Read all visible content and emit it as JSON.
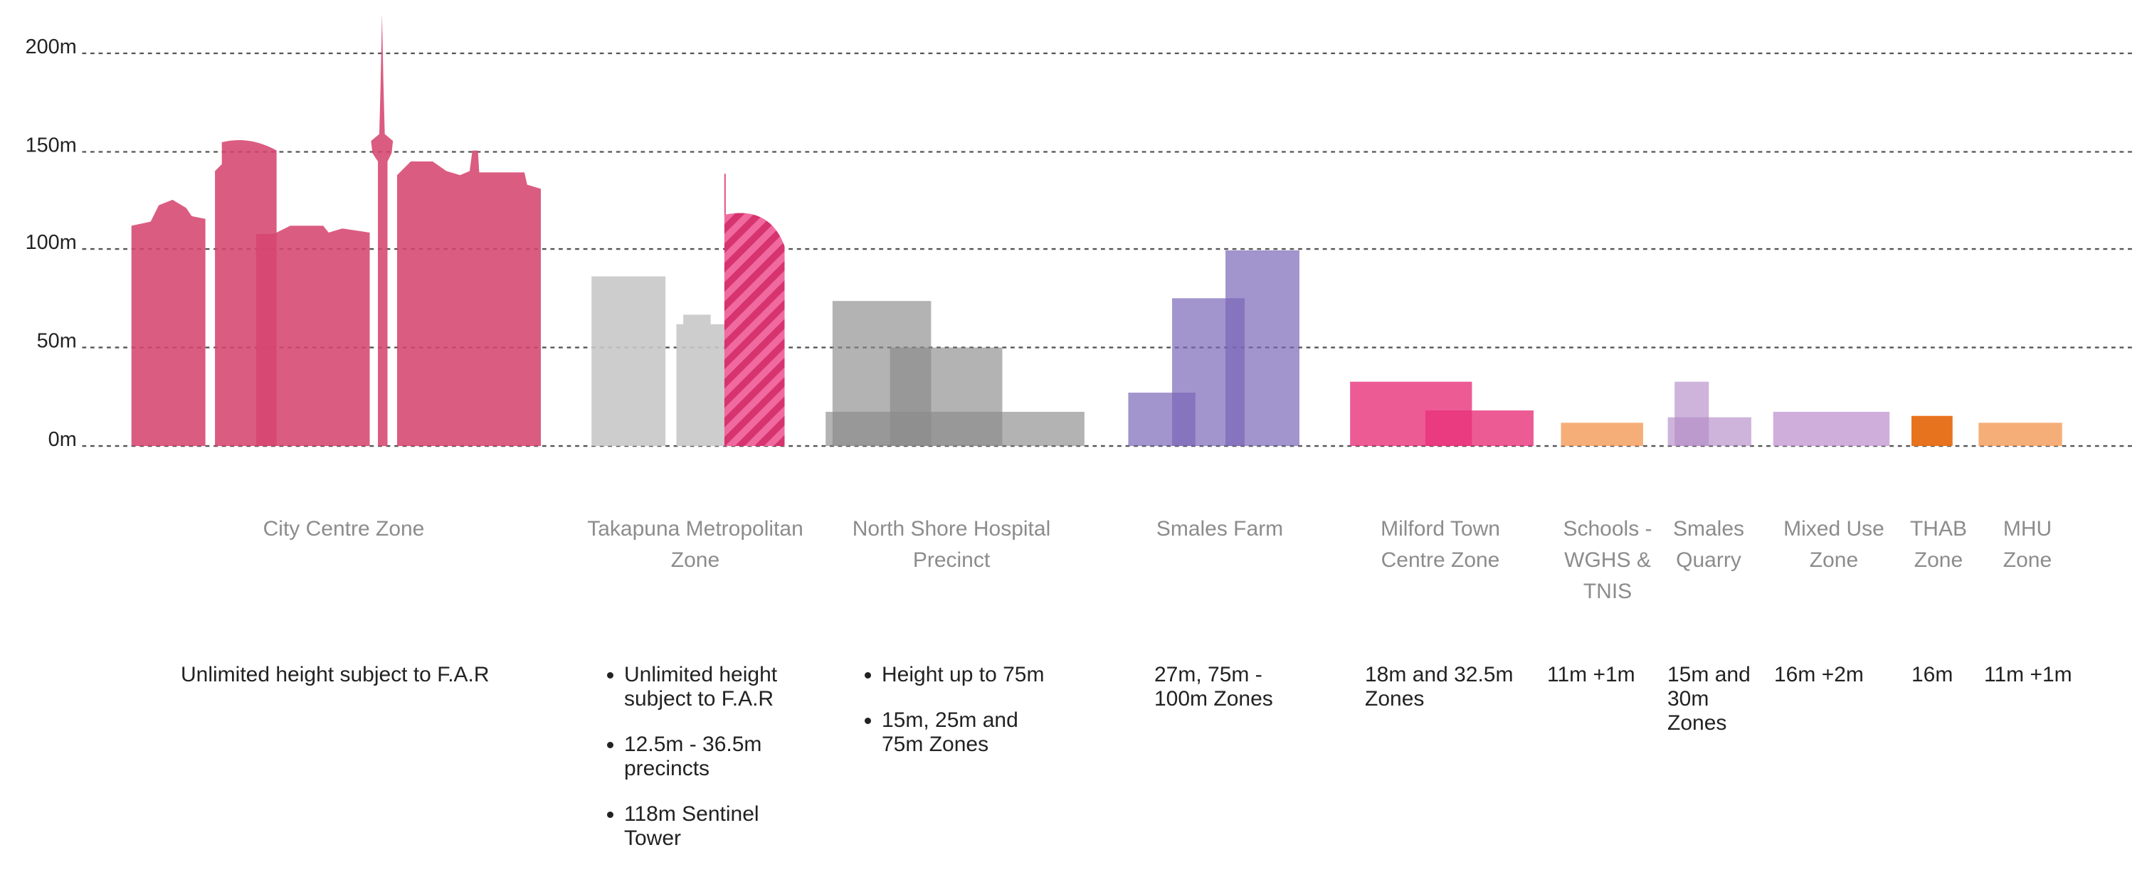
{
  "axis": {
    "ticks": [
      "200m",
      "150m",
      "100m",
      "50m",
      "0m"
    ]
  },
  "zones": [
    {
      "name": "City Centre Zone",
      "note": "Unlimited height subject to F.A.R"
    },
    {
      "name": "Takapuna Metropolitan Zone",
      "bullets": [
        "Unlimited height subject to F.A.R",
        "12.5m - 36.5m precincts",
        "118m Sentinel Tower"
      ]
    },
    {
      "name": "North Shore Hospital Precinct",
      "bullets": [
        "Height up to 75m",
        "15m, 25m and 75m Zones"
      ]
    },
    {
      "name": "Smales Farm",
      "note": "27m, 75m - 100m Zones"
    },
    {
      "name": "Milford Town Centre Zone",
      "note": "18m and 32.5m Zones"
    },
    {
      "name": "Schools - WGHS & TNIS",
      "note": "11m +1m"
    },
    {
      "name": "Smales Quarry",
      "note": "15m and 30m Zones"
    },
    {
      "name": "Mixed Use Zone",
      "note": "16m +2m"
    },
    {
      "name": "THAB Zone",
      "note": "16m"
    },
    {
      "name": "MHU Zone",
      "note": "11m +1m"
    }
  ]
}
